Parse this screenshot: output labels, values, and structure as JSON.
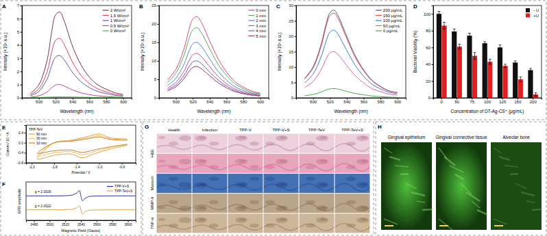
{
  "panel_labels": [
    "A",
    "B",
    "C",
    "D",
    "E",
    "F",
    "G",
    "H"
  ],
  "chart_data": [
    {
      "type": "line",
      "x_label": "Wavelength (nm)",
      "y_label": "Intensity (×10³ a.u.)",
      "x": [
        490,
        500,
        510,
        515,
        520,
        525,
        530,
        540,
        550,
        560,
        570,
        580,
        590,
        600
      ],
      "xlim": [
        480,
        610
      ],
      "xticks": [
        500,
        520,
        540,
        560,
        580,
        600
      ],
      "ylim": [
        0,
        7
      ],
      "yticks": [
        0,
        1,
        2,
        3,
        4,
        5,
        6,
        7
      ],
      "grid": false,
      "legend": "upper right",
      "series": [
        {
          "name": "2 W/cm²",
          "color": "#7b2d5a",
          "values": [
            0.33,
            0.98,
            2.9,
            4.9,
            6.3,
            6.5,
            5.85,
            3.9,
            2.5,
            1.56,
            0.98,
            0.65,
            0.39,
            0.26
          ]
        },
        {
          "name": "1.5 W/cm²",
          "color": "#e03c5a",
          "values": [
            0.23,
            0.68,
            2.0,
            3.4,
            4.37,
            4.5,
            4.05,
            2.7,
            1.71,
            1.08,
            0.68,
            0.45,
            0.27,
            0.18
          ]
        },
        {
          "name": "1 W/cm²",
          "color": "#5a5ab4",
          "values": [
            0.16,
            0.48,
            1.44,
            2.4,
            3.1,
            3.2,
            2.88,
            1.92,
            1.22,
            0.77,
            0.48,
            0.32,
            0.19,
            0.13
          ]
        },
        {
          "name": "0.5 W/cm²",
          "color": "#c83c96",
          "values": [
            0.05,
            0.15,
            0.45,
            0.75,
            0.97,
            1.0,
            0.9,
            0.6,
            0.38,
            0.24,
            0.15,
            0.1,
            0.06,
            0.04
          ]
        },
        {
          "name": "0 W/cm²",
          "color": "#3cb43c",
          "values": [
            0.02,
            0.03,
            0.05,
            0.06,
            0.07,
            0.07,
            0.07,
            0.06,
            0.05,
            0.04,
            0.03,
            0.03,
            0.02,
            0.02
          ]
        }
      ]
    },
    {
      "type": "line",
      "x_label": "Wavelength (nm)",
      "y_label": "Intensity (×10² a.u.)",
      "x": [
        490,
        500,
        510,
        515,
        520,
        525,
        530,
        540,
        550,
        560,
        570,
        580,
        590,
        600
      ],
      "xlim": [
        480,
        610
      ],
      "xticks": [
        500,
        520,
        540,
        560,
        580,
        600
      ],
      "ylim": [
        0,
        25
      ],
      "yticks": [
        0,
        5,
        10,
        15,
        20,
        25
      ],
      "grid": false,
      "legend": "upper right",
      "series": [
        {
          "name": "0 min",
          "color": "#e0447a",
          "values": [
            4.8,
            7.7,
            13.6,
            18.0,
            21.3,
            22.0,
            20.5,
            15.4,
            10.6,
            7.0,
            4.4,
            2.9,
            1.8,
            1.3
          ]
        },
        {
          "name": "1 min",
          "color": "#5aaa5a",
          "values": [
            4.2,
            6.7,
            11.8,
            15.6,
            18.4,
            19.0,
            17.7,
            13.3,
            9.1,
            6.1,
            3.8,
            2.5,
            1.5,
            1.1
          ]
        },
        {
          "name": "2 min",
          "color": "#4a8ad0",
          "values": [
            3.3,
            5.3,
            9.3,
            12.3,
            14.6,
            15.0,
            14.0,
            10.5,
            7.2,
            4.8,
            3.0,
            2.0,
            1.2,
            0.9
          ]
        },
        {
          "name": "3 min",
          "color": "#d04aa0",
          "values": [
            2.6,
            4.2,
            7.4,
            9.8,
            11.6,
            12.0,
            11.2,
            8.4,
            5.8,
            3.8,
            2.4,
            1.6,
            1.0,
            0.7
          ]
        },
        {
          "name": "4 min",
          "color": "#6a5ad0",
          "values": [
            2.2,
            3.5,
            6.2,
            8.2,
            9.7,
            10.0,
            9.3,
            7.0,
            4.8,
            3.2,
            2.0,
            1.3,
            0.8,
            0.6
          ]
        },
        {
          "name": "5 min",
          "color": "#a03060",
          "values": [
            1.9,
            3.0,
            5.3,
            7.0,
            8.2,
            8.5,
            7.9,
            6.0,
            4.1,
            2.7,
            1.7,
            1.1,
            0.7,
            0.5
          ]
        }
      ]
    },
    {
      "type": "line",
      "x_label": "Wavelength (nm)",
      "y_label": "Intensity (×10² a.u.)",
      "x": [
        490,
        500,
        510,
        515,
        520,
        525,
        530,
        540,
        550,
        560,
        570,
        580,
        590,
        600
      ],
      "xlim": [
        480,
        610
      ],
      "xticks": [
        500,
        520,
        540,
        560,
        580,
        600
      ],
      "ylim": [
        0,
        30
      ],
      "yticks": [
        0,
        5,
        10,
        15,
        20,
        25,
        30
      ],
      "grid": false,
      "legend": "upper right",
      "series": [
        {
          "name": "200 μg/mL",
          "color": "#4a5a8a",
          "values": [
            6.3,
            10.0,
            17.7,
            23.4,
            27.6,
            28.5,
            26.5,
            20.0,
            13.7,
            9.1,
            5.7,
            3.7,
            2.3,
            1.7
          ]
        },
        {
          "name": "150 μg/mL",
          "color": "#e04a4a",
          "values": [
            6.1,
            9.6,
            17.1,
            22.6,
            26.7,
            27.5,
            25.6,
            19.3,
            13.2,
            8.8,
            5.5,
            3.6,
            2.2,
            1.7
          ]
        },
        {
          "name": "100 μg/mL",
          "color": "#3a7ad0",
          "values": [
            4.8,
            7.7,
            13.6,
            18.0,
            21.3,
            22.0,
            20.5,
            15.4,
            10.6,
            7.0,
            4.4,
            2.9,
            1.8,
            1.3
          ]
        },
        {
          "name": "50 μg/mL",
          "color": "#e060a0",
          "values": [
            3.3,
            5.3,
            9.3,
            12.3,
            14.6,
            15.0,
            14.0,
            10.5,
            7.2,
            4.8,
            3.0,
            2.0,
            1.2,
            0.9
          ]
        },
        {
          "name": "0 μg/mL",
          "color": "#40b040",
          "values": [
            0.7,
            1.1,
            1.9,
            2.5,
            2.9,
            3.0,
            2.8,
            2.1,
            1.4,
            1.0,
            0.6,
            0.4,
            0.24,
            0.18
          ]
        }
      ]
    },
    {
      "type": "bar",
      "x_label": "Concentration of DT-Ag-CS⁺ (μg/mL)",
      "y_label": "Bacterial Viability (%)",
      "categories": [
        "0",
        "50",
        "75",
        "100",
        "125",
        "150",
        "200"
      ],
      "ylim": [
        0,
        110
      ],
      "yticks": [
        0,
        20,
        40,
        60,
        80,
        100
      ],
      "grid": false,
      "legend": "upper right",
      "series": [
        {
          "name": "- U",
          "color": "#111111",
          "values": [
            100,
            79,
            74,
            65,
            60,
            42,
            33
          ],
          "error": [
            3,
            3,
            3,
            2,
            3,
            2,
            2
          ]
        },
        {
          "name": "+U",
          "color": "#e02020",
          "values": [
            86,
            61,
            50,
            43,
            38,
            22,
            4
          ],
          "error": [
            4,
            3,
            4,
            3,
            2,
            3,
            2
          ]
        }
      ]
    },
    {
      "type": "line",
      "title": "TPP-TeV",
      "x_label": "Potential / V",
      "y_label": "Current / 10⁻⁵A",
      "x": [
        -0.5,
        -0.8,
        -1.1,
        -1.3,
        -1.5,
        -1.8,
        -2.1,
        -1.8,
        -1.5,
        -1.2,
        -1.0,
        -0.8,
        -0.5
      ],
      "xlim": [
        -2.3,
        -0.35
      ],
      "xticks": [
        -2.2,
        -1.8,
        -1.4,
        {
          "value": -1,
          "label": "-1.0"
        },
        -0.6
      ],
      "ylim": [
        -0.8,
        0.7
      ],
      "yticks": [
        -0.8,
        -0.4,
        {
          "value": 0,
          "label": "0.0"
        },
        0.4
      ],
      "grid": false,
      "legend": "upper left",
      "series": [
        {
          "name": "60 min",
          "color": "#e8a040",
          "values": [
            -0.1,
            -0.25,
            -0.45,
            -0.6,
            -0.45,
            -0.5,
            -0.65,
            0.0,
            0.1,
            0.25,
            0.35,
            0.2,
            0.15
          ]
        },
        {
          "name": "30 min",
          "color": "#f0c070",
          "values": [
            -0.08,
            -0.2,
            -0.36,
            -0.48,
            -0.36,
            -0.4,
            -0.52,
            0.0,
            0.08,
            0.2,
            0.28,
            0.16,
            0.12
          ]
        },
        {
          "name": "10 min",
          "color": "#c88020",
          "values": [
            -0.06,
            -0.16,
            -0.29,
            -0.39,
            -0.29,
            -0.32,
            -0.42,
            0.0,
            0.06,
            0.16,
            0.23,
            0.13,
            0.1
          ]
        }
      ]
    },
    {
      "type": "line",
      "x_label": "Magnetic Field (Gauss)",
      "y_label": "EPR amplitude",
      "x": [
        3470,
        3500,
        3520,
        3530,
        3535,
        3538,
        3540,
        3542,
        3545,
        3550,
        3560,
        3580,
        3610
      ],
      "xlim": [
        3470,
        3610
      ],
      "xticks": [
        3480,
        3500,
        3520,
        3540,
        3560,
        3580,
        3600
      ],
      "ylim": [
        0,
        11
      ],
      "tick_labels": "x",
      "grid": false,
      "legend": "upper right",
      "annotations": [
        "g = 2.0026",
        "g = 2.0022"
      ],
      "series": [
        {
          "name": "TPP-V+S",
          "color": "#2a2a9a",
          "values": [
            7,
            7,
            7.05,
            7.3,
            7.9,
            8.5,
            7,
            5.6,
            6.2,
            6.8,
            6.95,
            7,
            7
          ]
        },
        {
          "name": "TPP-TeV+S",
          "color": "#e8a040",
          "values": [
            3,
            3,
            3.05,
            3.2,
            3.6,
            4.2,
            3,
            1.8,
            2.4,
            2.85,
            2.95,
            3,
            3
          ]
        }
      ]
    }
  ],
  "figure_G": {
    "columns": [
      "Health",
      "Infection",
      "TPP-V",
      "TPP-V+S",
      "TPP-TeV",
      "TPP-TeV+S"
    ],
    "rows": [
      "H&E",
      "Masson",
      "MMP-9",
      "TNF-α"
    ]
  },
  "figure_H": {
    "titles": [
      "Gingival epithelium",
      "Gingival connective tissue",
      "Alveolar bone"
    ]
  }
}
